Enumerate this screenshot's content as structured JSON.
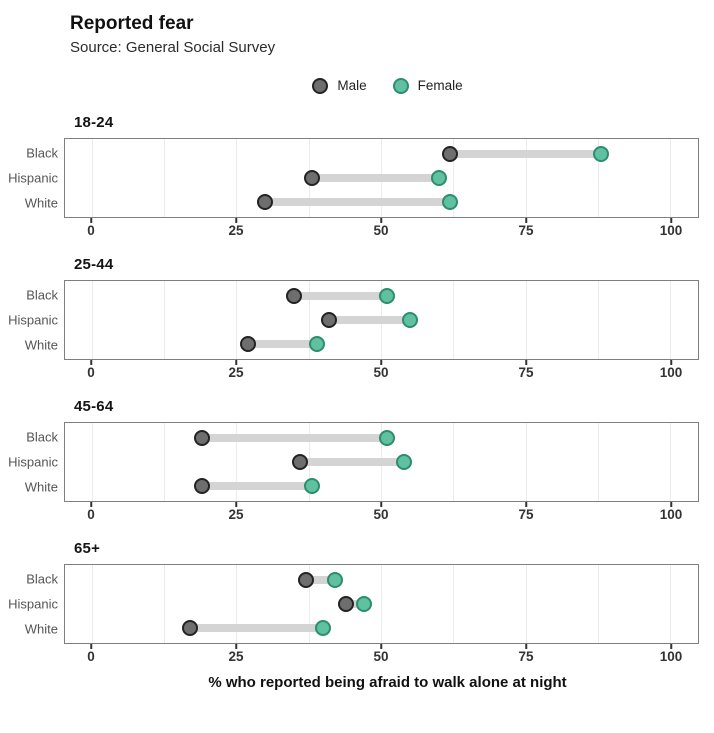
{
  "header": {
    "title": "Reported fear",
    "subtitle": "Source: General Social Survey"
  },
  "legend": {
    "items": [
      {
        "label": "Male",
        "fill": "#6e6e6e",
        "stroke": "#232323"
      },
      {
        "label": "Female",
        "fill": "#5fc1a0",
        "stroke": "#2e8c6f"
      }
    ]
  },
  "colors": {
    "male_fill": "#6e6e6e",
    "male_stroke": "#232323",
    "female_fill": "#5fc1a0",
    "female_stroke": "#2e8c6f",
    "connector": "#d4d4d4",
    "gridline": "#ececec",
    "panel_border": "#7f7f7f"
  },
  "chart_data": {
    "type": "dumbbell",
    "title": "Reported fear",
    "subtitle": "Source: General Social Survey",
    "xlabel": "% who reported being afraid to walk alone at night",
    "series_names": [
      "Male",
      "Female"
    ],
    "categories": [
      "Black",
      "Hispanic",
      "White"
    ],
    "axis": {
      "ticks": [
        0,
        25,
        50,
        75,
        100
      ],
      "minor_gridline_step": 12.5,
      "range": [
        0,
        100
      ],
      "grid": true
    },
    "legend_position": "top-center",
    "panels": [
      {
        "age_group": "18-24",
        "rows": [
          {
            "category": "Black",
            "male": 62,
            "female": 88
          },
          {
            "category": "Hispanic",
            "male": 38,
            "female": 60
          },
          {
            "category": "White",
            "male": 30,
            "female": 62
          }
        ]
      },
      {
        "age_group": "25-44",
        "rows": [
          {
            "category": "Black",
            "male": 35,
            "female": 51
          },
          {
            "category": "Hispanic",
            "male": 41,
            "female": 55
          },
          {
            "category": "White",
            "male": 27,
            "female": 39
          }
        ]
      },
      {
        "age_group": "45-64",
        "rows": [
          {
            "category": "Black",
            "male": 19,
            "female": 51
          },
          {
            "category": "Hispanic",
            "male": 36,
            "female": 54
          },
          {
            "category": "White",
            "male": 19,
            "female": 38
          }
        ]
      },
      {
        "age_group": "65+",
        "rows": [
          {
            "category": "Black",
            "male": 37,
            "female": 42
          },
          {
            "category": "Hispanic",
            "male": 44,
            "female": 47
          },
          {
            "category": "White",
            "male": 17,
            "female": 40
          }
        ]
      }
    ]
  }
}
